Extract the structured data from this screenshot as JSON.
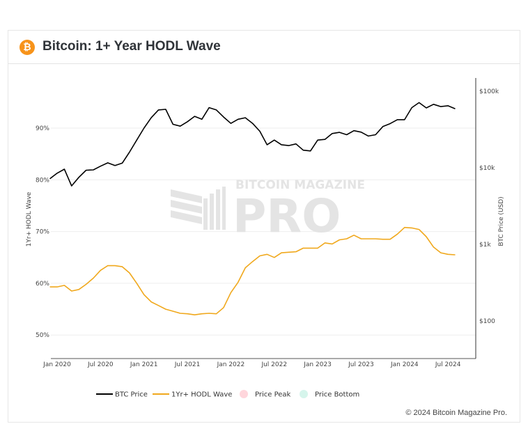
{
  "header": {
    "title": "Bitcoin: 1+ Year HODL Wave",
    "icon": "bitcoin-icon",
    "icon_glyph": "₿"
  },
  "watermark": {
    "line1": "BITCOIN MAGAZINE",
    "line2": "PRO"
  },
  "footer": {
    "copyright": "© 2024 Bitcoin Magazine Pro."
  },
  "colors": {
    "btc_price": "#000000",
    "hodl_wave": "#f0a81c",
    "price_peak": "#ffd6dc",
    "price_bottom": "#d6f5ec",
    "brand": "#f7931a"
  },
  "chart_data": {
    "type": "line",
    "title": "Bitcoin: 1+ Year HODL Wave",
    "xlabel": "",
    "ylabel_left": "1Yr+ HODL Wave",
    "ylabel_right": "BTC Price (USD)",
    "x_ticks": [
      "Jan 2020",
      "Jul 2020",
      "Jan 2021",
      "Jul 2021",
      "Jan 2022",
      "Jul 2022",
      "Jan 2023",
      "Jul 2023",
      "Jan 2024",
      "Jul 2024"
    ],
    "y_left_ticks": [
      "50%",
      "60%",
      "70%",
      "80%",
      "90%"
    ],
    "y_left_range": [
      45.3,
      94.9
    ],
    "y_right_ticks": [
      "$100",
      "$1k",
      "$10k",
      "$100k"
    ],
    "y_right_scale": "log",
    "y_right_range": [
      31,
      124000
    ],
    "grid": true,
    "legend_position": "bottom",
    "legend": [
      {
        "name": "BTC Price",
        "type": "line"
      },
      {
        "name": "1Yr+ HODL Wave",
        "type": "line"
      },
      {
        "name": "Price Peak",
        "type": "marker"
      },
      {
        "name": "Price Bottom",
        "type": "marker"
      }
    ],
    "x": [
      "2019-12",
      "2020-01",
      "2020-02",
      "2020-03",
      "2020-04",
      "2020-05",
      "2020-06",
      "2020-07",
      "2020-08",
      "2020-09",
      "2020-10",
      "2020-11",
      "2020-12",
      "2021-01",
      "2021-02",
      "2021-03",
      "2021-04",
      "2021-05",
      "2021-06",
      "2021-07",
      "2021-08",
      "2021-09",
      "2021-10",
      "2021-11",
      "2021-12",
      "2022-01",
      "2022-02",
      "2022-03",
      "2022-04",
      "2022-05",
      "2022-06",
      "2022-07",
      "2022-08",
      "2022-09",
      "2022-10",
      "2022-11",
      "2022-12",
      "2023-01",
      "2023-02",
      "2023-03",
      "2023-04",
      "2023-05",
      "2023-06",
      "2023-07",
      "2023-08",
      "2023-09",
      "2023-10",
      "2023-11",
      "2023-12",
      "2024-01",
      "2024-02",
      "2024-03",
      "2024-04",
      "2024-05",
      "2024-06",
      "2024-07",
      "2024-08"
    ],
    "series": [
      {
        "name": "BTC Price",
        "axis": "right",
        "values": [
          7200,
          8500,
          9600,
          5800,
          7500,
          9300,
          9400,
          10500,
          11600,
          10700,
          11500,
          16000,
          23000,
          33000,
          45000,
          57000,
          58000,
          37000,
          35000,
          40000,
          47000,
          43000,
          61000,
          57000,
          46000,
          38000,
          43000,
          45000,
          38000,
          30000,
          20000,
          23000,
          20000,
          19500,
          20500,
          17000,
          16600,
          23000,
          23500,
          28000,
          29000,
          27000,
          30500,
          29200,
          26000,
          27000,
          34500,
          37700,
          42500,
          42500,
          61000,
          71000,
          60500,
          67500,
          63000,
          64600,
          59000
        ]
      },
      {
        "name": "1Yr+ HODL Wave",
        "axis": "left",
        "values": [
          59.3,
          59.3,
          59.6,
          58.5,
          58.8,
          59.8,
          61.0,
          62.5,
          63.4,
          63.4,
          63.2,
          62.0,
          60.0,
          57.8,
          56.4,
          55.7,
          55.0,
          54.6,
          54.2,
          54.1,
          53.9,
          54.1,
          54.2,
          54.1,
          55.3,
          58.2,
          60.2,
          63.0,
          64.2,
          65.3,
          65.6,
          65.0,
          65.9,
          66.0,
          66.1,
          66.8,
          66.8,
          66.8,
          67.8,
          67.6,
          68.4,
          68.6,
          69.3,
          68.6,
          68.6,
          68.6,
          68.5,
          68.5,
          69.5,
          70.8,
          70.7,
          70.4,
          69.0,
          67.0,
          65.9,
          65.6,
          65.5
        ]
      }
    ]
  }
}
